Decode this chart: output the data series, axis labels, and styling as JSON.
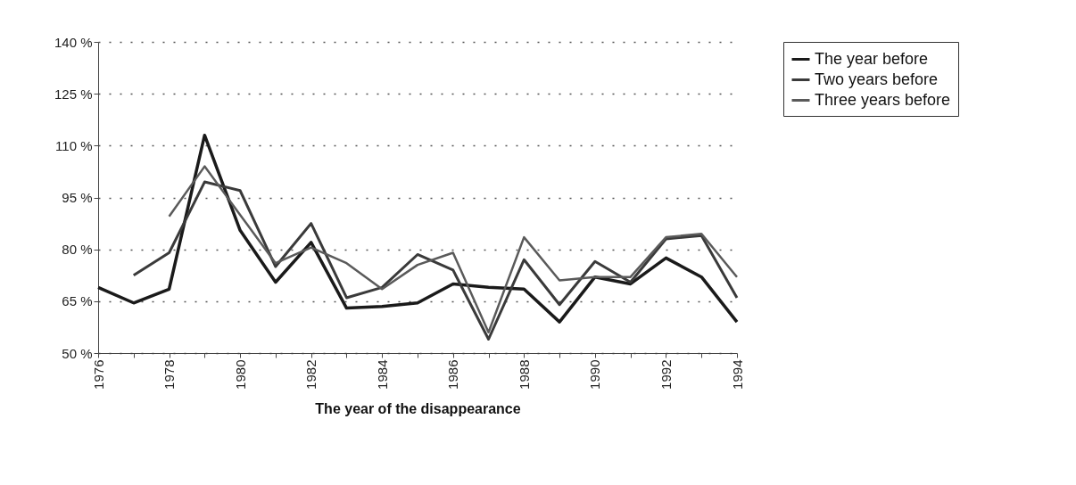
{
  "chart_data": {
    "type": "line",
    "xlabel": "The year of the disappearance",
    "x": [
      1976,
      1977,
      1978,
      1979,
      1980,
      1981,
      1982,
      1983,
      1984,
      1985,
      1986,
      1987,
      1988,
      1989,
      1990,
      1991,
      1992,
      1993,
      1994
    ],
    "series": [
      {
        "name": "The year before",
        "color": "#1a1a1a",
        "values": [
          69,
          64.5,
          68.5,
          113,
          85.5,
          70.5,
          82,
          63,
          63.5,
          64.5,
          70,
          69,
          68.5,
          59,
          72,
          70,
          77.5,
          72,
          59
        ]
      },
      {
        "name": "Two years before",
        "color": "#3a3a3a",
        "values": [
          null,
          72.5,
          79,
          99.5,
          97,
          75,
          87.5,
          66,
          69,
          78.5,
          74,
          54,
          77,
          64,
          76.5,
          70.5,
          83,
          84,
          66
        ]
      },
      {
        "name": "Three years before",
        "color": "#5a5a5a",
        "values": [
          null,
          null,
          89.5,
          104,
          90,
          76,
          80.5,
          76,
          68.5,
          75.5,
          79,
          56,
          83.5,
          71,
          72,
          72,
          83.5,
          84.5,
          72
        ]
      }
    ],
    "xlim": [
      1976,
      1994
    ],
    "xticks": [
      1976,
      {
        "value": 1977,
        "label": null
      },
      1978,
      {
        "value": 1979,
        "label": null
      },
      1980,
      {
        "value": 1981,
        "label": null
      },
      1982,
      {
        "value": 1983,
        "label": null
      },
      1984,
      {
        "value": 1985,
        "label": null
      },
      1986,
      {
        "value": 1987,
        "label": null
      },
      1988,
      {
        "value": 1989,
        "label": null
      },
      1990,
      {
        "value": 1991,
        "label": null
      },
      1992,
      {
        "value": 1993,
        "label": null
      },
      1994
    ],
    "ylim": [
      50,
      140
    ],
    "yticks": [
      {
        "value": 50,
        "label": "50 %"
      },
      {
        "value": 65,
        "label": "65 %"
      },
      {
        "value": 80,
        "label": "80 %"
      },
      {
        "value": 95,
        "label": "95 %"
      },
      {
        "value": 110,
        "label": "110 %"
      },
      {
        "value": 125,
        "label": "125 %"
      },
      {
        "value": 140,
        "label": "140 %"
      }
    ],
    "grid": "y",
    "legend": "right"
  }
}
